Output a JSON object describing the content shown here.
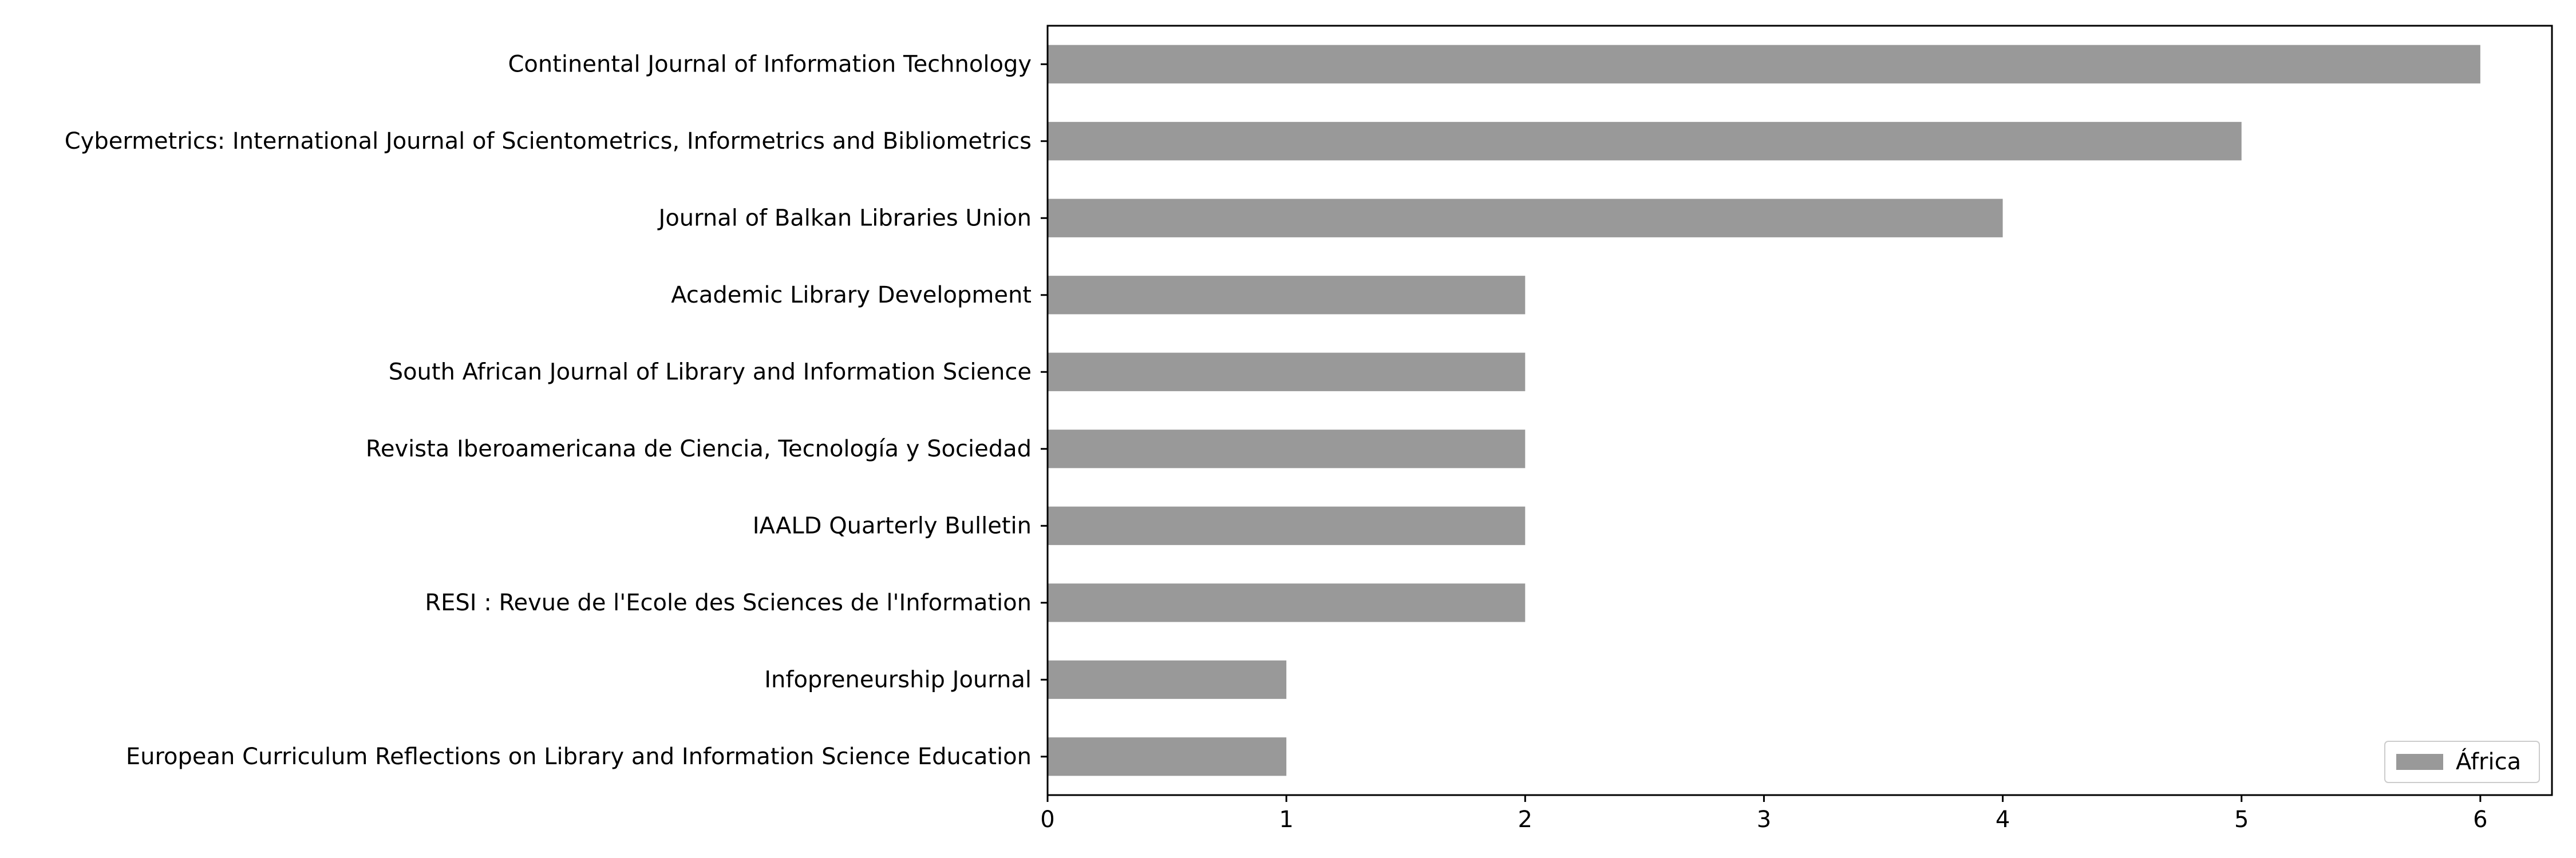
{
  "chart_data": {
    "type": "bar",
    "orientation": "horizontal",
    "categories": [
      "Continental Journal of Information Technology",
      "Cybermetrics: International Journal of Scientometrics, Informetrics and Bibliometrics",
      "Journal of Balkan Libraries Union",
      "Academic Library Development",
      "South African Journal of Library and Information Science",
      "Revista Iberoamericana de Ciencia, Tecnología y Sociedad",
      "IAALD Quarterly Bulletin",
      "RESI : Revue de l'Ecole des Sciences de l'Information",
      "Infopreneurship Journal",
      "European Curriculum Reflections on Library and Information Science Education"
    ],
    "series": [
      {
        "name": "África",
        "values": [
          6,
          5,
          4,
          2,
          2,
          2,
          2,
          2,
          1,
          1
        ],
        "color": "#999999"
      }
    ],
    "xlim": [
      0,
      6.3
    ],
    "xticks": [
      "0",
      "1",
      "2",
      "3",
      "4",
      "5",
      "6"
    ],
    "title": "",
    "xlabel": "",
    "ylabel": "",
    "grid": false,
    "legend_position": "lower-right"
  }
}
